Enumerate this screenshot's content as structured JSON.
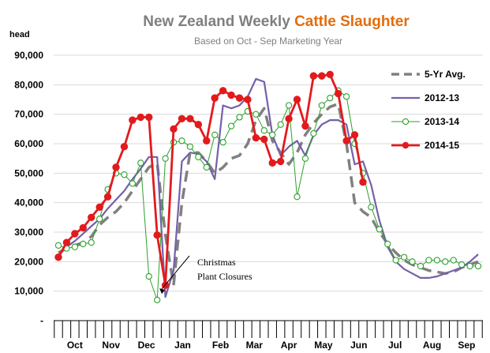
{
  "chart_data": {
    "type": "line",
    "title_part1": "New Zealand Weekly ",
    "title_part2": "Cattle Slaughter",
    "subtitle": "Based on Oct - Sep Marketing Year",
    "ylabel": "head",
    "ylim": [
      0,
      90000
    ],
    "yticks": [
      "-",
      "10,000",
      "20,000",
      "30,000",
      "40,000",
      "50,000",
      "60,000",
      "70,000",
      "80,000",
      "90,000"
    ],
    "ytick_values": [
      0,
      10000,
      20000,
      30000,
      40000,
      50000,
      60000,
      70000,
      80000,
      90000
    ],
    "weeks": 52,
    "months": [
      "Oct",
      "Nov",
      "Dec",
      "Jan",
      "Feb",
      "Mar",
      "Apr",
      "May",
      "Jun",
      "Jul",
      "Aug",
      "Sep"
    ],
    "month_centers_week": [
      2.0,
      6.4,
      10.7,
      15.1,
      19.7,
      23.8,
      28.0,
      32.2,
      36.5,
      40.9,
      45.4,
      49.6
    ],
    "grid": "horizontal",
    "legend_position": "top-right",
    "annotation": {
      "lines": [
        "Christmas",
        "Plant Closures"
      ],
      "week": 11.8,
      "value": 11500
    },
    "series": [
      {
        "name": "5-Yr Avg.",
        "color": "#808080",
        "style": "dashed",
        "values": [
          23000,
          24500,
          25500,
          26500,
          28500,
          32500,
          35000,
          37000,
          40000,
          44000,
          48000,
          52000,
          53500,
          29000,
          12000,
          40000,
          57000,
          57000,
          54000,
          50000,
          52000,
          55000,
          56000,
          60000,
          68000,
          72000,
          61000,
          57000,
          53000,
          57000,
          63000,
          67000,
          70000,
          72500,
          73500,
          60000,
          40000,
          37000,
          35000,
          30000,
          26000,
          23000,
          20500,
          19000,
          18000,
          17000,
          16500,
          16000,
          16500,
          18000,
          19000,
          20000
        ]
      },
      {
        "name": "2012-13",
        "color": "#7560a8",
        "style": "solid",
        "values": [
          22000,
          25000,
          27000,
          29500,
          32000,
          34500,
          38000,
          41000,
          44000,
          48000,
          51500,
          55500,
          55500,
          8000,
          17000,
          54000,
          57000,
          56500,
          54000,
          48000,
          73000,
          72000,
          73000,
          76000,
          82000,
          81000,
          63000,
          56000,
          59000,
          61000,
          56000,
          63000,
          66500,
          68000,
          68000,
          66500,
          53000,
          54000,
          46000,
          34000,
          25000,
          20000,
          17500,
          16000,
          14500,
          14500,
          15000,
          16000,
          17000,
          18000,
          20000,
          22500
        ]
      },
      {
        "name": "2013-14",
        "color": "#2ca02c",
        "style": "marker-open",
        "values": [
          25500,
          24500,
          25000,
          26000,
          26500,
          34500,
          44500,
          50000,
          49500,
          46500,
          53500,
          15000,
          7000,
          55000,
          60500,
          61000,
          59000,
          55500,
          52000,
          63000,
          60500,
          66000,
          69000,
          71000,
          70000,
          64500,
          63000,
          66500,
          73000,
          42000,
          55000,
          63500,
          73000,
          75500,
          78000,
          76000,
          60000,
          50000,
          38500,
          31000,
          26000,
          20500,
          21500,
          20000,
          18500,
          20500,
          20500,
          20000,
          20500,
          19000,
          18500,
          18500
        ]
      },
      {
        "name": "2014-15",
        "color": "#e31a1c",
        "style": "marker-filled",
        "values": [
          21500,
          26500,
          29500,
          31500,
          35000,
          38500,
          42000,
          52000,
          59000,
          68000,
          69000,
          69000,
          29000,
          12000,
          65000,
          68500,
          68500,
          66500,
          61000,
          75500,
          78000,
          76500,
          75500,
          75000,
          62000,
          61500,
          53500,
          54000,
          68500,
          75000,
          66000,
          83000,
          83000,
          83500,
          77000,
          61000,
          63000,
          47000
        ]
      }
    ]
  }
}
